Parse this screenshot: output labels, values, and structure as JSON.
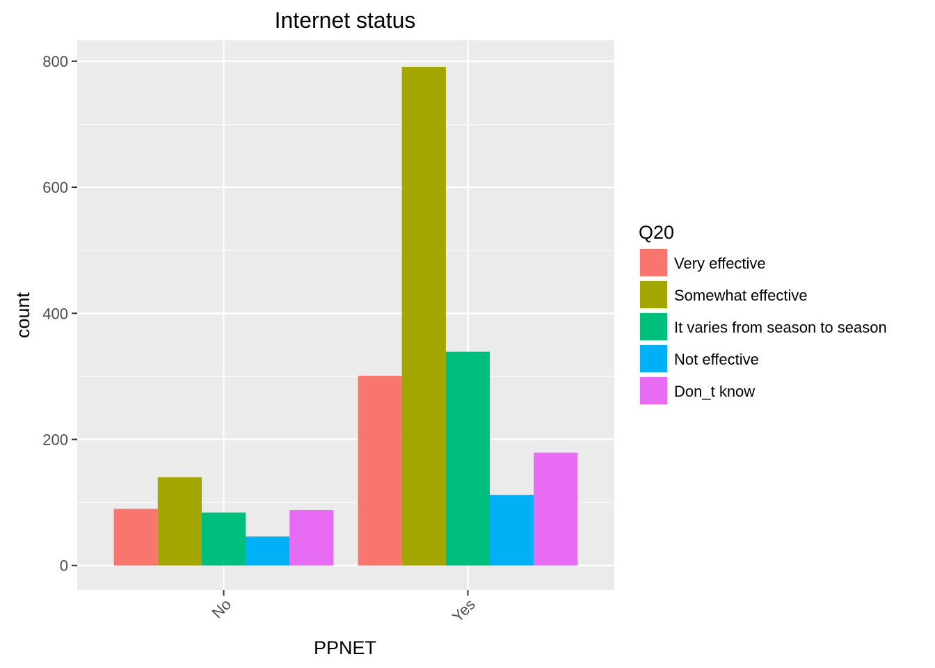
{
  "chart_data": {
    "type": "bar",
    "title": "Internet status",
    "xlabel": "PPNET",
    "ylabel": "count",
    "categories": [
      "No",
      "Yes"
    ],
    "series": [
      {
        "name": "Very effective",
        "values": [
          90,
          301
        ],
        "color": "#F8766D"
      },
      {
        "name": "Somewhat effective",
        "values": [
          140,
          791
        ],
        "color": "#A3A500"
      },
      {
        "name": "It varies from season to season",
        "values": [
          84,
          339
        ],
        "color": "#00BF7D"
      },
      {
        "name": "Not effective",
        "values": [
          46,
          112
        ],
        "color": "#00B0F6"
      },
      {
        "name": "Don_t know",
        "values": [
          88,
          179
        ],
        "color": "#E76BF3"
      }
    ],
    "ylim": [
      -39,
      833
    ],
    "yticks": [
      0,
      200,
      400,
      600,
      800
    ],
    "grid": true,
    "legend_title": "Q20",
    "legend_position": "right",
    "panel_background": "#EBEBEB"
  }
}
